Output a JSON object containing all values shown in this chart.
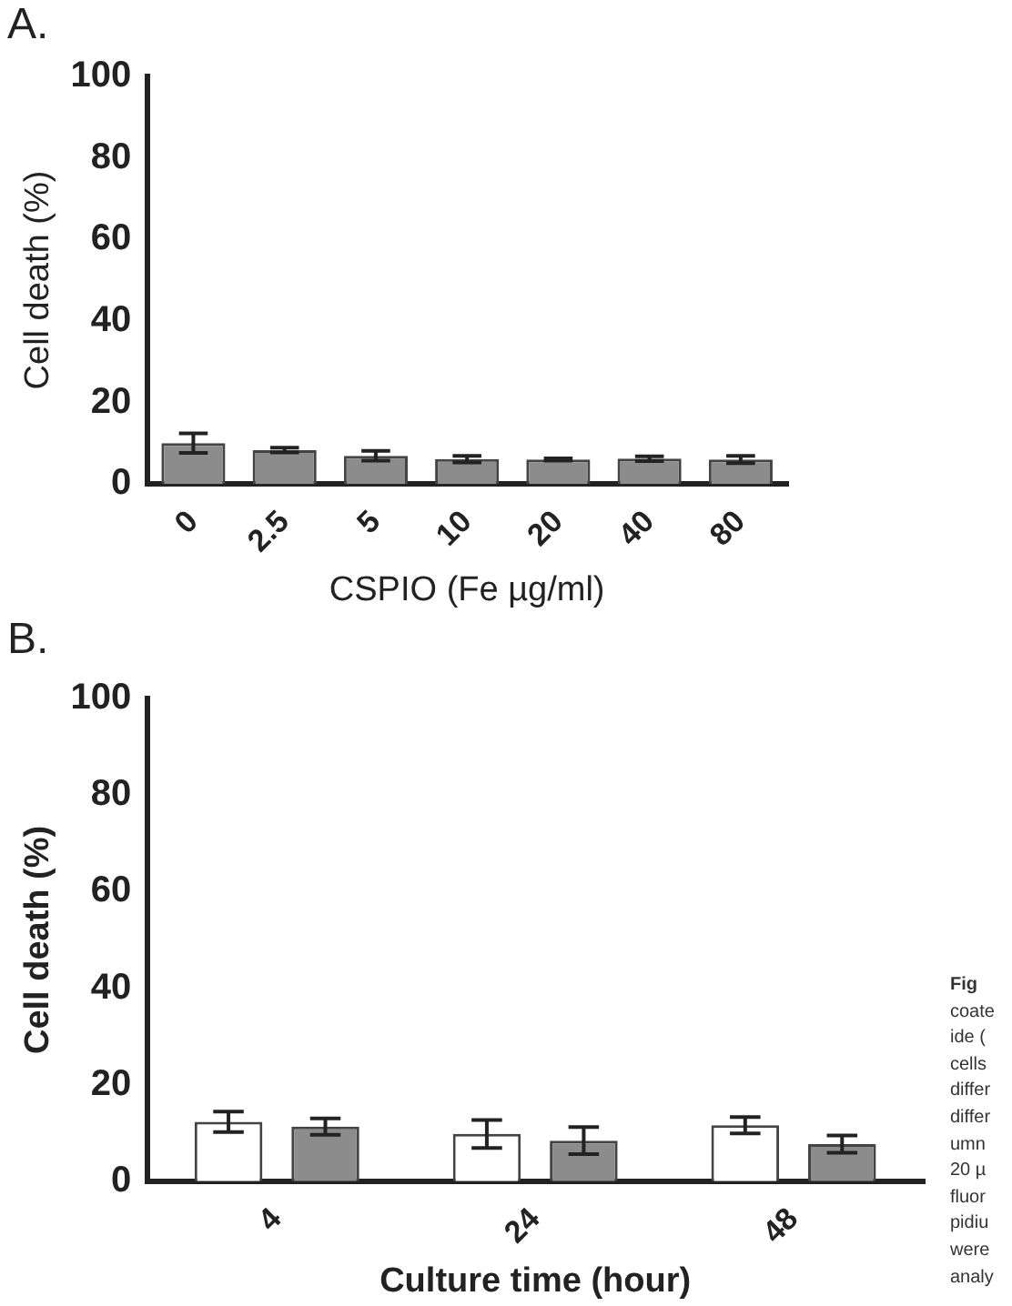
{
  "chart_data": [
    {
      "type": "bar",
      "title": "A.",
      "xlabel": "CSPIO (Fe µg/ml)",
      "ylabel": "Cell death (%)",
      "categories": [
        "0",
        "2.5",
        "5",
        "10",
        "20",
        "40",
        "80"
      ],
      "series": [
        {
          "color": "#8c8c8c",
          "values": [
            10,
            8.3,
            6.9,
            6.1,
            6.0,
            6.2,
            6.0
          ],
          "errors": [
            2.4,
            0.6,
            1.2,
            0.8,
            0.3,
            0.6,
            0.9
          ]
        }
      ],
      "ylim": [
        0,
        100
      ],
      "yticks": [
        0,
        20,
        40,
        60,
        80,
        100
      ],
      "grid": false,
      "legend": false
    },
    {
      "type": "bar",
      "title": "B.",
      "xlabel": "Culture time (hour)",
      "ylabel": "Cell death (%)",
      "categories": [
        "4",
        "24",
        "48"
      ],
      "series": [
        {
          "color": "#ffffff",
          "values": [
            12.3,
            9.8,
            11.6
          ],
          "errors": [
            2.1,
            2.9,
            1.7
          ]
        },
        {
          "color": "#8c8c8c",
          "values": [
            11.3,
            8.4,
            7.7
          ],
          "errors": [
            1.7,
            2.8,
            1.8
          ]
        }
      ],
      "ylim": [
        0,
        100
      ],
      "yticks": [
        0,
        20,
        40,
        60,
        80,
        100
      ],
      "grid": false,
      "legend": false,
      "annotations": [
        "Fig",
        "coate",
        "ide (",
        "cells",
        "differ",
        "differ",
        "umn",
        "20 µ",
        "fluor",
        "pidiu",
        "were",
        "analy"
      ]
    }
  ]
}
